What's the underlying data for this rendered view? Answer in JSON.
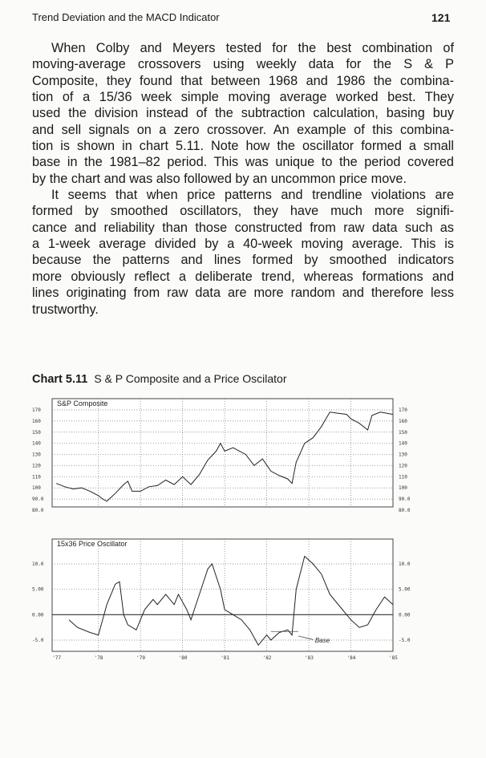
{
  "header": {
    "title": "Trend Deviation and the MACD Indicator",
    "page_number": "121"
  },
  "paragraphs": [
    [
      "When Colby and Meyers tested for the best combination of",
      "moving-average crossovers using weekly data for the S & P",
      "Composite, they found that between 1968 and 1986 the combina-",
      "tion of a 15/36 week simple moving average worked best. They",
      "used the division instead of the subtraction calculation, basing buy",
      "and sell signals on a zero crossover. An example of this combina-",
      "tion is shown in chart 5.11. Note how the oscillator formed a small",
      "base in the 1981–82 period. This was unique to the period covered",
      "by the chart and was also followed by an uncommon price move."
    ],
    [
      "It seems that when price patterns and trendline violations are",
      "formed by smoothed oscillators, they have much more signifi-",
      "cance and reliability than those constructed from raw data such as",
      "a 1-week average divided by a 40-week moving average. This is",
      "because the patterns and lines formed by smoothed indicators",
      "more obviously reflect a deliberate trend, whereas formations and",
      "lines originating from raw data are more random and therefore less",
      "trustworthy."
    ]
  ],
  "caption": {
    "number": "Chart 5.11",
    "title": "S & P Composite and a Price Oscilator"
  },
  "chart_data": [
    {
      "type": "line",
      "title": "S&P Composite",
      "ylim": [
        80,
        170
      ],
      "yticks_left": [
        "170",
        "160",
        "150",
        "140",
        "130",
        "120",
        "110",
        "100",
        "90.0",
        "80.0"
      ],
      "yticks_right": [
        "170",
        "160",
        "150",
        "140",
        "130",
        "120",
        "110",
        "100",
        "90.0",
        "80.0"
      ],
      "xlim": [
        1977,
        1985
      ],
      "grid": true,
      "x": [
        1977.0,
        1977.2,
        1977.4,
        1977.6,
        1977.8,
        1978.0,
        1978.1,
        1978.2,
        1978.4,
        1978.6,
        1978.7,
        1978.8,
        1979.0,
        1979.2,
        1979.4,
        1979.6,
        1979.8,
        1980.0,
        1980.2,
        1980.4,
        1980.6,
        1980.8,
        1980.9,
        1981.0,
        1981.2,
        1981.5,
        1981.7,
        1981.9,
        1982.1,
        1982.3,
        1982.5,
        1982.6,
        1982.7,
        1982.9,
        1983.1,
        1983.3,
        1983.5,
        1983.7,
        1983.9,
        1984.0,
        1984.2,
        1984.4,
        1984.5,
        1984.7,
        1985.0
      ],
      "values": [
        104,
        101,
        99,
        100,
        97,
        93,
        90,
        88,
        95,
        103,
        106,
        97,
        97,
        101,
        102,
        107,
        103,
        110,
        103,
        112,
        125,
        133,
        140,
        133,
        136,
        130,
        120,
        126,
        115,
        111,
        108,
        104,
        123,
        140,
        145,
        155,
        168,
        167,
        166,
        162,
        158,
        152,
        165,
        168,
        166
      ]
    },
    {
      "type": "line",
      "title": "15x36 Price Oscillator",
      "ylim": [
        -5,
        12
      ],
      "yticks_left": [
        "10.0",
        "5.00",
        "0.00",
        "-5.0"
      ],
      "yticks_right": [
        "10.0",
        "5.00",
        "0.00",
        "-5.0"
      ],
      "xticks": [
        "'77",
        "'78",
        "'79",
        "'80",
        "'81",
        "'82",
        "'83",
        "'84",
        "'85"
      ],
      "xlim": [
        1977,
        1985
      ],
      "grid": true,
      "annotation": "Base",
      "x": [
        1977.3,
        1977.5,
        1977.8,
        1978.0,
        1978.2,
        1978.4,
        1978.5,
        1978.6,
        1978.7,
        1978.9,
        1979.1,
        1979.3,
        1979.4,
        1979.6,
        1979.8,
        1979.9,
        1980.1,
        1980.2,
        1980.4,
        1980.6,
        1980.7,
        1980.9,
        1981.0,
        1981.2,
        1981.4,
        1981.6,
        1981.8,
        1982.0,
        1982.1,
        1982.3,
        1982.5,
        1982.6,
        1982.7,
        1982.9,
        1983.1,
        1983.3,
        1983.5,
        1983.8,
        1984.0,
        1984.2,
        1984.4,
        1984.6,
        1984.8,
        1985.0
      ],
      "values": [
        -1,
        -2.5,
        -3.5,
        -4,
        2,
        6,
        6.5,
        0,
        -2,
        -3,
        1,
        3,
        2,
        4,
        2,
        4,
        1,
        -1,
        4,
        9,
        10,
        5,
        1,
        0,
        -1,
        -3,
        -6,
        -4,
        -5,
        -3.5,
        -3,
        -4,
        5,
        11.5,
        10,
        8,
        4,
        1,
        -1,
        -2.5,
        -2,
        1,
        3.5,
        2
      ]
    }
  ]
}
